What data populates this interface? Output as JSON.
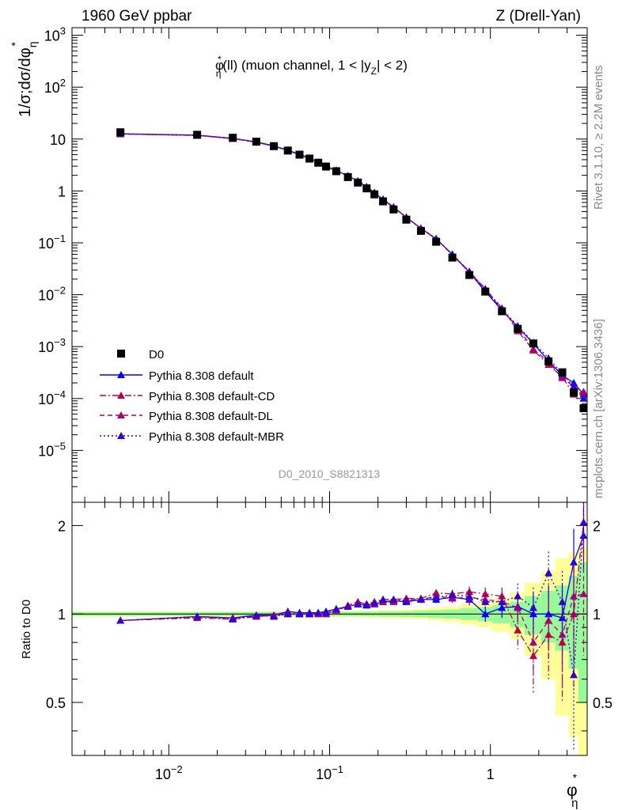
{
  "header": {
    "left": "1960 GeV ppbar",
    "right": "Z (Drell-Yan)"
  },
  "side_labels": {
    "rivet": "Rivet 3.1.10, ≥ 2.2M events",
    "mcplots": "mcplots.cern.ch [arXiv:1306.3436]"
  },
  "colors": {
    "data": "#000000",
    "default": "#0000ff",
    "cd": "#bb0044",
    "dl": "#aa0077",
    "mbr": "#3300cc",
    "band_inner": "#98f998",
    "band_outer": "#ffff99"
  },
  "chart_data": [
    {
      "type": "scatter",
      "panel": "main",
      "title": "φ*η(ll) (muon channel, 1 < |yZ| < 2)",
      "title_parts": {
        "phi": "φ",
        "star": "*",
        "eta": "η",
        "rest1": "(ll) (muon channel, 1 < |y",
        "sub": "Z",
        "rest2": "| < 2)"
      },
      "analysis_id": "D0_2010_S8821313",
      "ylabel": "1/σ;dσ/dφ*η",
      "ylabel_parts": {
        "main": "1/σ;dσ/dφ",
        "sub": "η",
        "star": "*"
      },
      "xscale": "log",
      "yscale": "log",
      "xlim": [
        0.0025,
        4.0
      ],
      "ylim": [
        1e-06,
        1400
      ],
      "x_ticks": [
        0.01,
        0.1,
        1
      ],
      "x_tick_labels": [
        {
          "base": "10",
          "exp": "−2"
        },
        {
          "base": "10",
          "exp": "−1"
        },
        {
          "base": "1",
          "exp": ""
        }
      ],
      "y_ticks": [
        1e-05,
        0.0001,
        0.001,
        0.01,
        0.1,
        1,
        10,
        100,
        1000
      ],
      "y_tick_labels": [
        {
          "base": "10",
          "exp": "−5"
        },
        {
          "base": "10",
          "exp": "−4"
        },
        {
          "base": "10",
          "exp": "−3"
        },
        {
          "base": "10",
          "exp": "−2"
        },
        {
          "base": "10",
          "exp": "−1"
        },
        {
          "base": "1",
          "exp": ""
        },
        {
          "base": "10",
          "exp": ""
        },
        {
          "base": "10",
          "exp": "2"
        },
        {
          "base": "10",
          "exp": "3"
        }
      ],
      "legend_position": "lower-left",
      "x": [
        0.005,
        0.015,
        0.025,
        0.035,
        0.045,
        0.055,
        0.065,
        0.075,
        0.085,
        0.095,
        0.11,
        0.13,
        0.15,
        0.17,
        0.19,
        0.215,
        0.25,
        0.3,
        0.37,
        0.46,
        0.58,
        0.74,
        0.93,
        1.18,
        1.48,
        1.85,
        2.3,
        2.8,
        3.3,
        3.8
      ],
      "series": [
        {
          "name": "D0",
          "marker": "square",
          "values": [
            13.5,
            12.1,
            10.6,
            8.9,
            7.3,
            6.0,
            5.0,
            4.2,
            3.5,
            2.95,
            2.4,
            1.85,
            1.45,
            1.12,
            0.86,
            0.63,
            0.44,
            0.28,
            0.17,
            0.105,
            0.052,
            0.024,
            0.0115,
            0.0048,
            0.0022,
            0.00115,
            0.00052,
            0.00032,
            0.00013,
            6.5e-05
          ]
        },
        {
          "name": "Pythia 8.308 default",
          "marker": "triangle",
          "line": "solid",
          "values": [
            12.6,
            11.9,
            10.3,
            8.8,
            7.4,
            6.1,
            5.1,
            4.3,
            3.55,
            3.0,
            2.5,
            1.95,
            1.55,
            1.2,
            0.93,
            0.69,
            0.49,
            0.31,
            0.19,
            0.118,
            0.06,
            0.027,
            0.0115,
            0.005,
            0.0024,
            0.00115,
            0.00053,
            0.00028,
            0.0002,
            0.00012
          ]
        },
        {
          "name": "Pythia 8.308 default-CD",
          "marker": "triangle",
          "line": "dashdot",
          "values": [
            12.5,
            11.7,
            10.2,
            8.7,
            7.2,
            6.0,
            5.0,
            4.2,
            3.5,
            2.95,
            2.45,
            1.95,
            1.55,
            1.2,
            0.92,
            0.68,
            0.48,
            0.31,
            0.19,
            0.12,
            0.06,
            0.028,
            0.013,
            0.0055,
            0.002,
            0.00085,
            0.00045,
            0.00026,
            0.00012,
            0.000135
          ]
        },
        {
          "name": "Pythia 8.308 default-DL",
          "marker": "triangle",
          "line": "dashed",
          "values": [
            12.5,
            11.8,
            10.2,
            8.7,
            7.3,
            6.0,
            5.0,
            4.2,
            3.5,
            2.95,
            2.45,
            1.95,
            1.55,
            1.2,
            0.92,
            0.68,
            0.48,
            0.31,
            0.19,
            0.12,
            0.058,
            0.027,
            0.0125,
            0.0052,
            0.0023,
            0.0009,
            0.0005,
            0.00025,
            0.00017,
            0.00013
          ]
        },
        {
          "name": "Pythia 8.308 default-MBR",
          "marker": "triangle",
          "line": "dotted",
          "values": [
            12.6,
            11.8,
            10.2,
            8.8,
            7.3,
            6.0,
            5.0,
            4.25,
            3.55,
            2.95,
            2.45,
            1.95,
            1.55,
            1.2,
            0.93,
            0.69,
            0.49,
            0.31,
            0.19,
            0.12,
            0.06,
            0.028,
            0.0128,
            0.0053,
            0.0025,
            0.0012,
            0.0006,
            0.0003,
            0.00017,
            0.0001
          ]
        }
      ]
    },
    {
      "type": "scatter",
      "panel": "ratio",
      "ylabel": "Ratio to D0",
      "xlabel": "φ*η",
      "xlabel_parts": {
        "phi": "φ",
        "star": "*",
        "eta": "η"
      },
      "xscale": "log",
      "yscale": "log",
      "xlim": [
        0.0025,
        4.0
      ],
      "ylim": [
        0.33,
        2.4
      ],
      "y_ticks": [
        0.5,
        1,
        2
      ],
      "y_tick_labels": [
        "0.5",
        "1",
        "2"
      ],
      "x": [
        0.005,
        0.015,
        0.025,
        0.035,
        0.045,
        0.055,
        0.065,
        0.075,
        0.085,
        0.095,
        0.11,
        0.13,
        0.15,
        0.17,
        0.19,
        0.215,
        0.25,
        0.3,
        0.37,
        0.46,
        0.58,
        0.74,
        0.93,
        1.18,
        1.48,
        1.85,
        2.3,
        2.8,
        3.3,
        3.8
      ],
      "band_edges": [
        0.0025,
        0.01,
        0.02,
        0.03,
        0.04,
        0.05,
        0.06,
        0.07,
        0.08,
        0.09,
        0.1,
        0.12,
        0.14,
        0.16,
        0.18,
        0.2,
        0.23,
        0.27,
        0.33,
        0.41,
        0.51,
        0.65,
        0.83,
        1.03,
        1.33,
        1.63,
        2.07,
        2.53,
        3.07,
        3.53,
        4.0
      ],
      "band_inner_halfwidth": [
        0.015,
        0.015,
        0.015,
        0.015,
        0.015,
        0.015,
        0.015,
        0.016,
        0.016,
        0.016,
        0.016,
        0.017,
        0.017,
        0.018,
        0.018,
        0.02,
        0.02,
        0.022,
        0.025,
        0.03,
        0.035,
        0.045,
        0.055,
        0.07,
        0.1,
        0.15,
        0.2,
        0.25,
        0.35,
        0.5
      ],
      "band_outer_halfwidth": [
        0.02,
        0.02,
        0.02,
        0.02,
        0.02,
        0.02,
        0.02,
        0.022,
        0.022,
        0.022,
        0.022,
        0.025,
        0.025,
        0.027,
        0.028,
        0.03,
        0.032,
        0.035,
        0.04,
        0.05,
        0.06,
        0.08,
        0.1,
        0.13,
        0.18,
        0.28,
        0.4,
        0.55,
        0.62,
        0.7
      ],
      "series": [
        {
          "name": "Pythia 8.308 default",
          "values": [
            0.95,
            0.98,
            0.97,
            0.99,
            0.99,
            1.02,
            1.01,
            1.01,
            1.01,
            1.02,
            1.04,
            1.06,
            1.08,
            1.07,
            1.08,
            1.1,
            1.11,
            1.1,
            1.12,
            1.12,
            1.14,
            1.12,
            1.0,
            1.05,
            1.06,
            1.0,
            1.0,
            0.97,
            1.5,
            1.85
          ],
          "errors": [
            0.01,
            0.01,
            0.01,
            0.01,
            0.01,
            0.01,
            0.01,
            0.01,
            0.01,
            0.01,
            0.01,
            0.015,
            0.015,
            0.015,
            0.02,
            0.02,
            0.02,
            0.025,
            0.03,
            0.03,
            0.04,
            0.05,
            0.06,
            0.08,
            0.12,
            0.18,
            0.25,
            0.3,
            0.45,
            0.45
          ]
        },
        {
          "name": "Pythia 8.308 default-CD",
          "values": [
            0.95,
            0.97,
            0.96,
            0.98,
            0.99,
            1.01,
            1.0,
            1.0,
            1.0,
            1.0,
            1.03,
            1.07,
            1.1,
            1.08,
            1.1,
            1.12,
            1.12,
            1.13,
            1.13,
            1.18,
            1.17,
            1.19,
            1.17,
            1.15,
            0.88,
            0.72,
            0.85,
            0.8,
            1.0,
            2.05
          ],
          "errors": [
            0.01,
            0.01,
            0.01,
            0.01,
            0.01,
            0.01,
            0.01,
            0.01,
            0.01,
            0.01,
            0.01,
            0.015,
            0.015,
            0.015,
            0.02,
            0.02,
            0.02,
            0.025,
            0.03,
            0.03,
            0.04,
            0.05,
            0.06,
            0.08,
            0.12,
            0.18,
            0.25,
            0.3,
            0.45,
            0.45
          ]
        },
        {
          "name": "Pythia 8.308 default-DL",
          "values": [
            0.95,
            0.98,
            0.97,
            0.98,
            0.99,
            1.0,
            1.0,
            1.0,
            1.0,
            1.0,
            1.03,
            1.06,
            1.08,
            1.08,
            1.08,
            1.1,
            1.1,
            1.12,
            1.12,
            1.15,
            1.13,
            1.14,
            1.12,
            1.1,
            1.05,
            0.8,
            0.95,
            0.85,
            1.15,
            1.17
          ],
          "errors": [
            0.01,
            0.01,
            0.01,
            0.01,
            0.01,
            0.01,
            0.01,
            0.01,
            0.01,
            0.01,
            0.01,
            0.015,
            0.015,
            0.015,
            0.02,
            0.02,
            0.02,
            0.025,
            0.03,
            0.03,
            0.04,
            0.05,
            0.06,
            0.08,
            0.12,
            0.18,
            0.25,
            0.3,
            0.45,
            0.45
          ]
        },
        {
          "name": "Pythia 8.308 default-MBR",
          "values": [
            0.95,
            0.98,
            0.96,
            0.99,
            0.98,
            1.0,
            1.0,
            1.0,
            1.01,
            1.01,
            1.04,
            1.06,
            1.08,
            1.08,
            1.09,
            1.12,
            1.12,
            1.11,
            1.12,
            1.14,
            1.16,
            1.15,
            1.1,
            1.1,
            1.15,
            1.05,
            1.38,
            1.1,
            0.62,
            2.05
          ],
          "errors": [
            0.01,
            0.01,
            0.01,
            0.01,
            0.01,
            0.01,
            0.01,
            0.01,
            0.01,
            0.01,
            0.01,
            0.015,
            0.015,
            0.015,
            0.02,
            0.02,
            0.02,
            0.025,
            0.03,
            0.03,
            0.04,
            0.05,
            0.06,
            0.08,
            0.12,
            0.18,
            0.25,
            0.3,
            0.45,
            0.45
          ]
        }
      ]
    }
  ]
}
